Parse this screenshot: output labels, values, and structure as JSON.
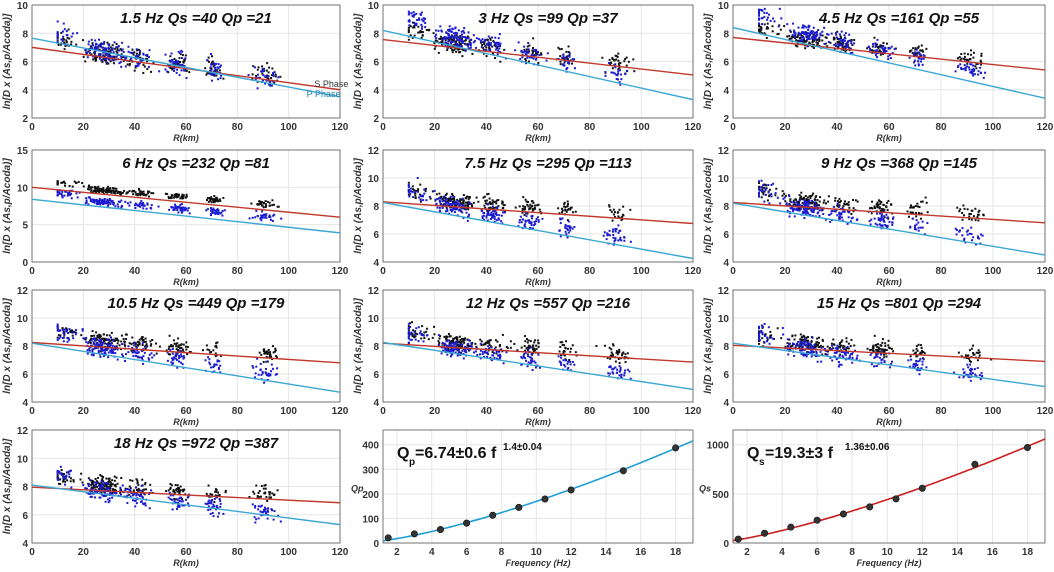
{
  "colors": {
    "s_phase_line": "#c0392b",
    "p_phase_line": "#3aa7d4",
    "s_points": "#111111",
    "p_points": "#1a1ad0",
    "qs_fit": "#cc1f1f",
    "qp_fit": "#1f9fd4",
    "grid": "#e6e6e6",
    "axis": "#555555"
  },
  "chart_data": [
    {
      "type": "scatter",
      "title": "1.5 Hz Qs =40  Qp =21",
      "freq": 1.5,
      "Qs": 40,
      "Qp": 21,
      "xlabel": "R(km)",
      "ylabel": "ln[D x (As,p/Acoda)]",
      "xlim": [
        0,
        120
      ],
      "ylim": [
        2,
        10
      ],
      "xticks": [
        0,
        20,
        40,
        60,
        80,
        100,
        120
      ],
      "yticks": [
        2,
        4,
        6,
        8,
        10
      ],
      "s_line": [
        7.0,
        4.0
      ],
      "p_line": [
        7.65,
        3.5
      ],
      "s_center": 6.5,
      "s_slope": -0.025,
      "p_center": 6.6,
      "p_slope": -0.028,
      "spread": 1.0,
      "legend": [
        "S Phase",
        "P Phase"
      ],
      "grid": true
    },
    {
      "type": "scatter",
      "title": "3 Hz Qs =99  Qp =37",
      "freq": 3,
      "Qs": 99,
      "Qp": 37,
      "xlabel": "R(km)",
      "ylabel": "ln[D x (As,p/Acoda)]",
      "xlim": [
        0,
        120
      ],
      "ylim": [
        2,
        10
      ],
      "xticks": [
        0,
        20,
        40,
        60,
        80,
        100,
        120
      ],
      "yticks": [
        2,
        4,
        6,
        8,
        10
      ],
      "s_line": [
        7.55,
        5.05
      ],
      "p_line": [
        8.2,
        3.3
      ],
      "s_center": 7.2,
      "s_slope": -0.02,
      "p_center": 7.6,
      "p_slope": -0.04,
      "spread": 0.9,
      "grid": true
    },
    {
      "type": "scatter",
      "title": "4.5 Hz Qs =161  Qp =55",
      "freq": 4.5,
      "Qs": 161,
      "Qp": 55,
      "xlabel": "R(km)",
      "ylabel": "ln[D x (As,p/Acoda)]",
      "xlim": [
        0,
        120
      ],
      "ylim": [
        2,
        10
      ],
      "xticks": [
        0,
        20,
        40,
        60,
        80,
        100,
        120
      ],
      "yticks": [
        2,
        4,
        6,
        8,
        10
      ],
      "s_line": [
        7.7,
        5.4
      ],
      "p_line": [
        8.4,
        3.4
      ],
      "s_center": 7.5,
      "s_slope": -0.02,
      "p_center": 7.9,
      "p_slope": -0.04,
      "spread": 0.8,
      "grid": true
    },
    {
      "type": "scatter",
      "title": "6 Hz Qs =232  Qp =81",
      "freq": 6,
      "Qs": 232,
      "Qp": 81,
      "xlabel": "R(km)",
      "ylabel": "ln[D x (As,p/Acoda)]",
      "xlim": [
        0,
        120
      ],
      "ylim": [
        0,
        15
      ],
      "xticks": [
        0,
        20,
        40,
        60,
        80,
        100,
        120
      ],
      "yticks": [
        0,
        5,
        10,
        15
      ],
      "s_line": [
        10.0,
        6.0
      ],
      "p_line": [
        8.4,
        3.9
      ],
      "s_center": 9.6,
      "s_slope": -0.03,
      "p_center": 8.0,
      "p_slope": -0.03,
      "spread": 0.6,
      "grid": true
    },
    {
      "type": "scatter",
      "title": "7.5 Hz Qs =295  Qp =113",
      "freq": 7.5,
      "Qs": 295,
      "Qp": 113,
      "xlabel": "R(km)",
      "ylabel": "ln[D x (As,p/Acoda)]",
      "xlim": [
        0,
        120
      ],
      "ylim": [
        4,
        12
      ],
      "xticks": [
        0,
        20,
        40,
        60,
        80,
        100,
        120
      ],
      "yticks": [
        4,
        6,
        8,
        10,
        12
      ],
      "s_line": [
        8.3,
        6.75
      ],
      "p_line": [
        8.25,
        4.25
      ],
      "s_center": 8.3,
      "s_slope": -0.013,
      "p_center": 7.8,
      "p_slope": -0.033,
      "spread": 0.8,
      "grid": true
    },
    {
      "type": "scatter",
      "title": "9 Hz Qs =368  Qp =145",
      "freq": 9,
      "Qs": 368,
      "Qp": 145,
      "xlabel": "R(km)",
      "ylabel": "ln[D x (As,p/Acoda)]",
      "xlim": [
        0,
        120
      ],
      "ylim": [
        4,
        12
      ],
      "xticks": [
        0,
        20,
        40,
        60,
        80,
        100,
        120
      ],
      "yticks": [
        4,
        6,
        8,
        10,
        12
      ],
      "s_line": [
        8.25,
        6.8
      ],
      "p_line": [
        8.2,
        4.5
      ],
      "s_center": 8.3,
      "s_slope": -0.013,
      "p_center": 7.8,
      "p_slope": -0.03,
      "spread": 0.8,
      "grid": true
    },
    {
      "type": "scatter",
      "title": "10.5 Hz Qs =449 Qp =179",
      "freq": 10.5,
      "Qs": 449,
      "Qp": 179,
      "xlabel": "R(km)",
      "ylabel": "ln[D x (As,p/Acoda)]",
      "xlim": [
        0,
        120
      ],
      "ylim": [
        4,
        12
      ],
      "xticks": [
        0,
        20,
        40,
        60,
        80,
        100,
        120
      ],
      "yticks": [
        4,
        6,
        8,
        10,
        12
      ],
      "s_line": [
        8.25,
        6.8
      ],
      "p_line": [
        8.2,
        4.7
      ],
      "s_center": 8.3,
      "s_slope": -0.012,
      "p_center": 7.8,
      "p_slope": -0.028,
      "spread": 0.8,
      "grid": true
    },
    {
      "type": "scatter",
      "title": "12 Hz Qs =557  Qp =216",
      "freq": 12,
      "Qs": 557,
      "Qp": 216,
      "xlabel": "R(km)",
      "ylabel": "ln[D x (As,p/Acoda)]",
      "xlim": [
        0,
        120
      ],
      "ylim": [
        4,
        12
      ],
      "xticks": [
        0,
        20,
        40,
        60,
        80,
        100,
        120
      ],
      "yticks": [
        4,
        6,
        8,
        10,
        12
      ],
      "s_line": [
        8.2,
        6.85
      ],
      "p_line": [
        8.25,
        4.9
      ],
      "s_center": 8.2,
      "s_slope": -0.012,
      "p_center": 7.8,
      "p_slope": -0.027,
      "spread": 0.8,
      "grid": true
    },
    {
      "type": "scatter",
      "title": "15 Hz Qs =801  Qp =294",
      "freq": 15,
      "Qs": 801,
      "Qp": 294,
      "xlabel": "R(km)",
      "ylabel": "ln[D x (As,p/Acoda)]",
      "xlim": [
        0,
        120
      ],
      "ylim": [
        4,
        12
      ],
      "xticks": [
        0,
        20,
        40,
        60,
        80,
        100,
        120
      ],
      "yticks": [
        4,
        6,
        8,
        10,
        12
      ],
      "s_line": [
        8.05,
        6.9
      ],
      "p_line": [
        8.2,
        5.1
      ],
      "s_center": 8.1,
      "s_slope": -0.011,
      "p_center": 7.7,
      "p_slope": -0.025,
      "spread": 0.8,
      "grid": true
    },
    {
      "type": "scatter",
      "title": "18 Hz Qs =972  Qp =387",
      "freq": 18,
      "Qs": 972,
      "Qp": 387,
      "xlabel": "R(km)",
      "ylabel": "ln[D x (As,p/Acoda)]",
      "xlim": [
        0,
        120
      ],
      "ylim": [
        4,
        12
      ],
      "xticks": [
        0,
        20,
        40,
        60,
        80,
        100,
        120
      ],
      "yticks": [
        4,
        6,
        8,
        10,
        12
      ],
      "s_line": [
        7.95,
        6.85
      ],
      "p_line": [
        8.1,
        5.3
      ],
      "s_center": 8.0,
      "s_slope": -0.01,
      "p_center": 7.6,
      "p_slope": -0.023,
      "spread": 0.8,
      "grid": true
    },
    {
      "type": "line",
      "id": "qp",
      "title": "",
      "equation_base": "Q",
      "equation_sub": "p",
      "equation_main": "=6.74±0.6 f",
      "equation_exp": "1.4±0.04",
      "xlabel": "Frequency (Hz)",
      "ylabel": "Qp",
      "xlim": [
        1.2,
        19
      ],
      "ylim": [
        0,
        460
      ],
      "xticks": [
        2,
        4,
        6,
        8,
        10,
        12,
        14,
        16,
        18
      ],
      "yticks": [
        0,
        100,
        200,
        300,
        400
      ],
      "points": {
        "x": [
          1.5,
          3,
          4.5,
          6,
          7.5,
          9,
          10.5,
          12,
          15,
          18
        ],
        "y": [
          21,
          37,
          55,
          81,
          113,
          145,
          179,
          216,
          294,
          387
        ]
      },
      "fit": {
        "a": 6.74,
        "b": 1.4
      },
      "grid": true
    },
    {
      "type": "line",
      "id": "qs",
      "title": "",
      "equation_base": "Q",
      "equation_sub": "s",
      "equation_main": "=19.3±3 f",
      "equation_exp": "1.36±0.06",
      "xlabel": "Frequency (Hz)",
      "ylabel": "Qs",
      "xlim": [
        1.2,
        19
      ],
      "ylim": [
        0,
        1150
      ],
      "xticks": [
        2,
        4,
        6,
        8,
        10,
        12,
        14,
        16,
        18
      ],
      "yticks": [
        0,
        500,
        1000
      ],
      "points": {
        "x": [
          1.5,
          3,
          4.5,
          6,
          7.5,
          9,
          10.5,
          12,
          15,
          18
        ],
        "y": [
          40,
          99,
          161,
          232,
          295,
          368,
          449,
          557,
          801,
          972
        ]
      },
      "fit": {
        "a": 19.3,
        "b": 1.36
      },
      "grid": true
    }
  ]
}
